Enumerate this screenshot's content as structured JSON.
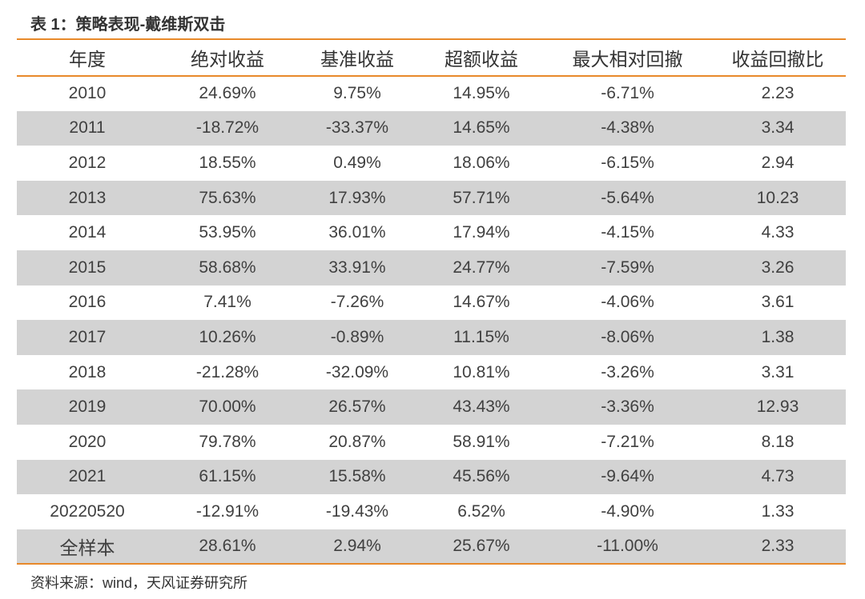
{
  "title": "表 1：策略表现-戴维斯双击",
  "source": "资料来源：wind，天风证券研究所",
  "table": {
    "headers": [
      "年度",
      "绝对收益",
      "基准收益",
      "超额收益",
      "最大相对回撤",
      "收益回撤比"
    ],
    "rows": [
      [
        "2010",
        "24.69%",
        "9.75%",
        "14.95%",
        "-6.71%",
        "2.23"
      ],
      [
        "2011",
        "-18.72%",
        "-33.37%",
        "14.65%",
        "-4.38%",
        "3.34"
      ],
      [
        "2012",
        "18.55%",
        "0.49%",
        "18.06%",
        "-6.15%",
        "2.94"
      ],
      [
        "2013",
        "75.63%",
        "17.93%",
        "57.71%",
        "-5.64%",
        "10.23"
      ],
      [
        "2014",
        "53.95%",
        "36.01%",
        "17.94%",
        "-4.15%",
        "4.33"
      ],
      [
        "2015",
        "58.68%",
        "33.91%",
        "24.77%",
        "-7.59%",
        "3.26"
      ],
      [
        "2016",
        "7.41%",
        "-7.26%",
        "14.67%",
        "-4.06%",
        "3.61"
      ],
      [
        "2017",
        "10.26%",
        "-0.89%",
        "11.15%",
        "-8.06%",
        "1.38"
      ],
      [
        "2018",
        "-21.28%",
        "-32.09%",
        "10.81%",
        "-3.26%",
        "3.31"
      ],
      [
        "2019",
        "70.00%",
        "26.57%",
        "43.43%",
        "-3.36%",
        "12.93"
      ],
      [
        "2020",
        "79.78%",
        "20.87%",
        "58.91%",
        "-7.21%",
        "8.18"
      ],
      [
        "2021",
        "61.15%",
        "15.58%",
        "45.56%",
        "-9.64%",
        "4.73"
      ],
      [
        "20220520",
        "-12.91%",
        "-19.43%",
        "6.52%",
        "-4.90%",
        "1.33"
      ],
      [
        "全样本",
        "28.61%",
        "2.94%",
        "25.67%",
        "-11.00%",
        "2.33"
      ]
    ]
  },
  "colors": {
    "accent_line": "#e8892a",
    "shaded_row": "#d3d3d3"
  }
}
